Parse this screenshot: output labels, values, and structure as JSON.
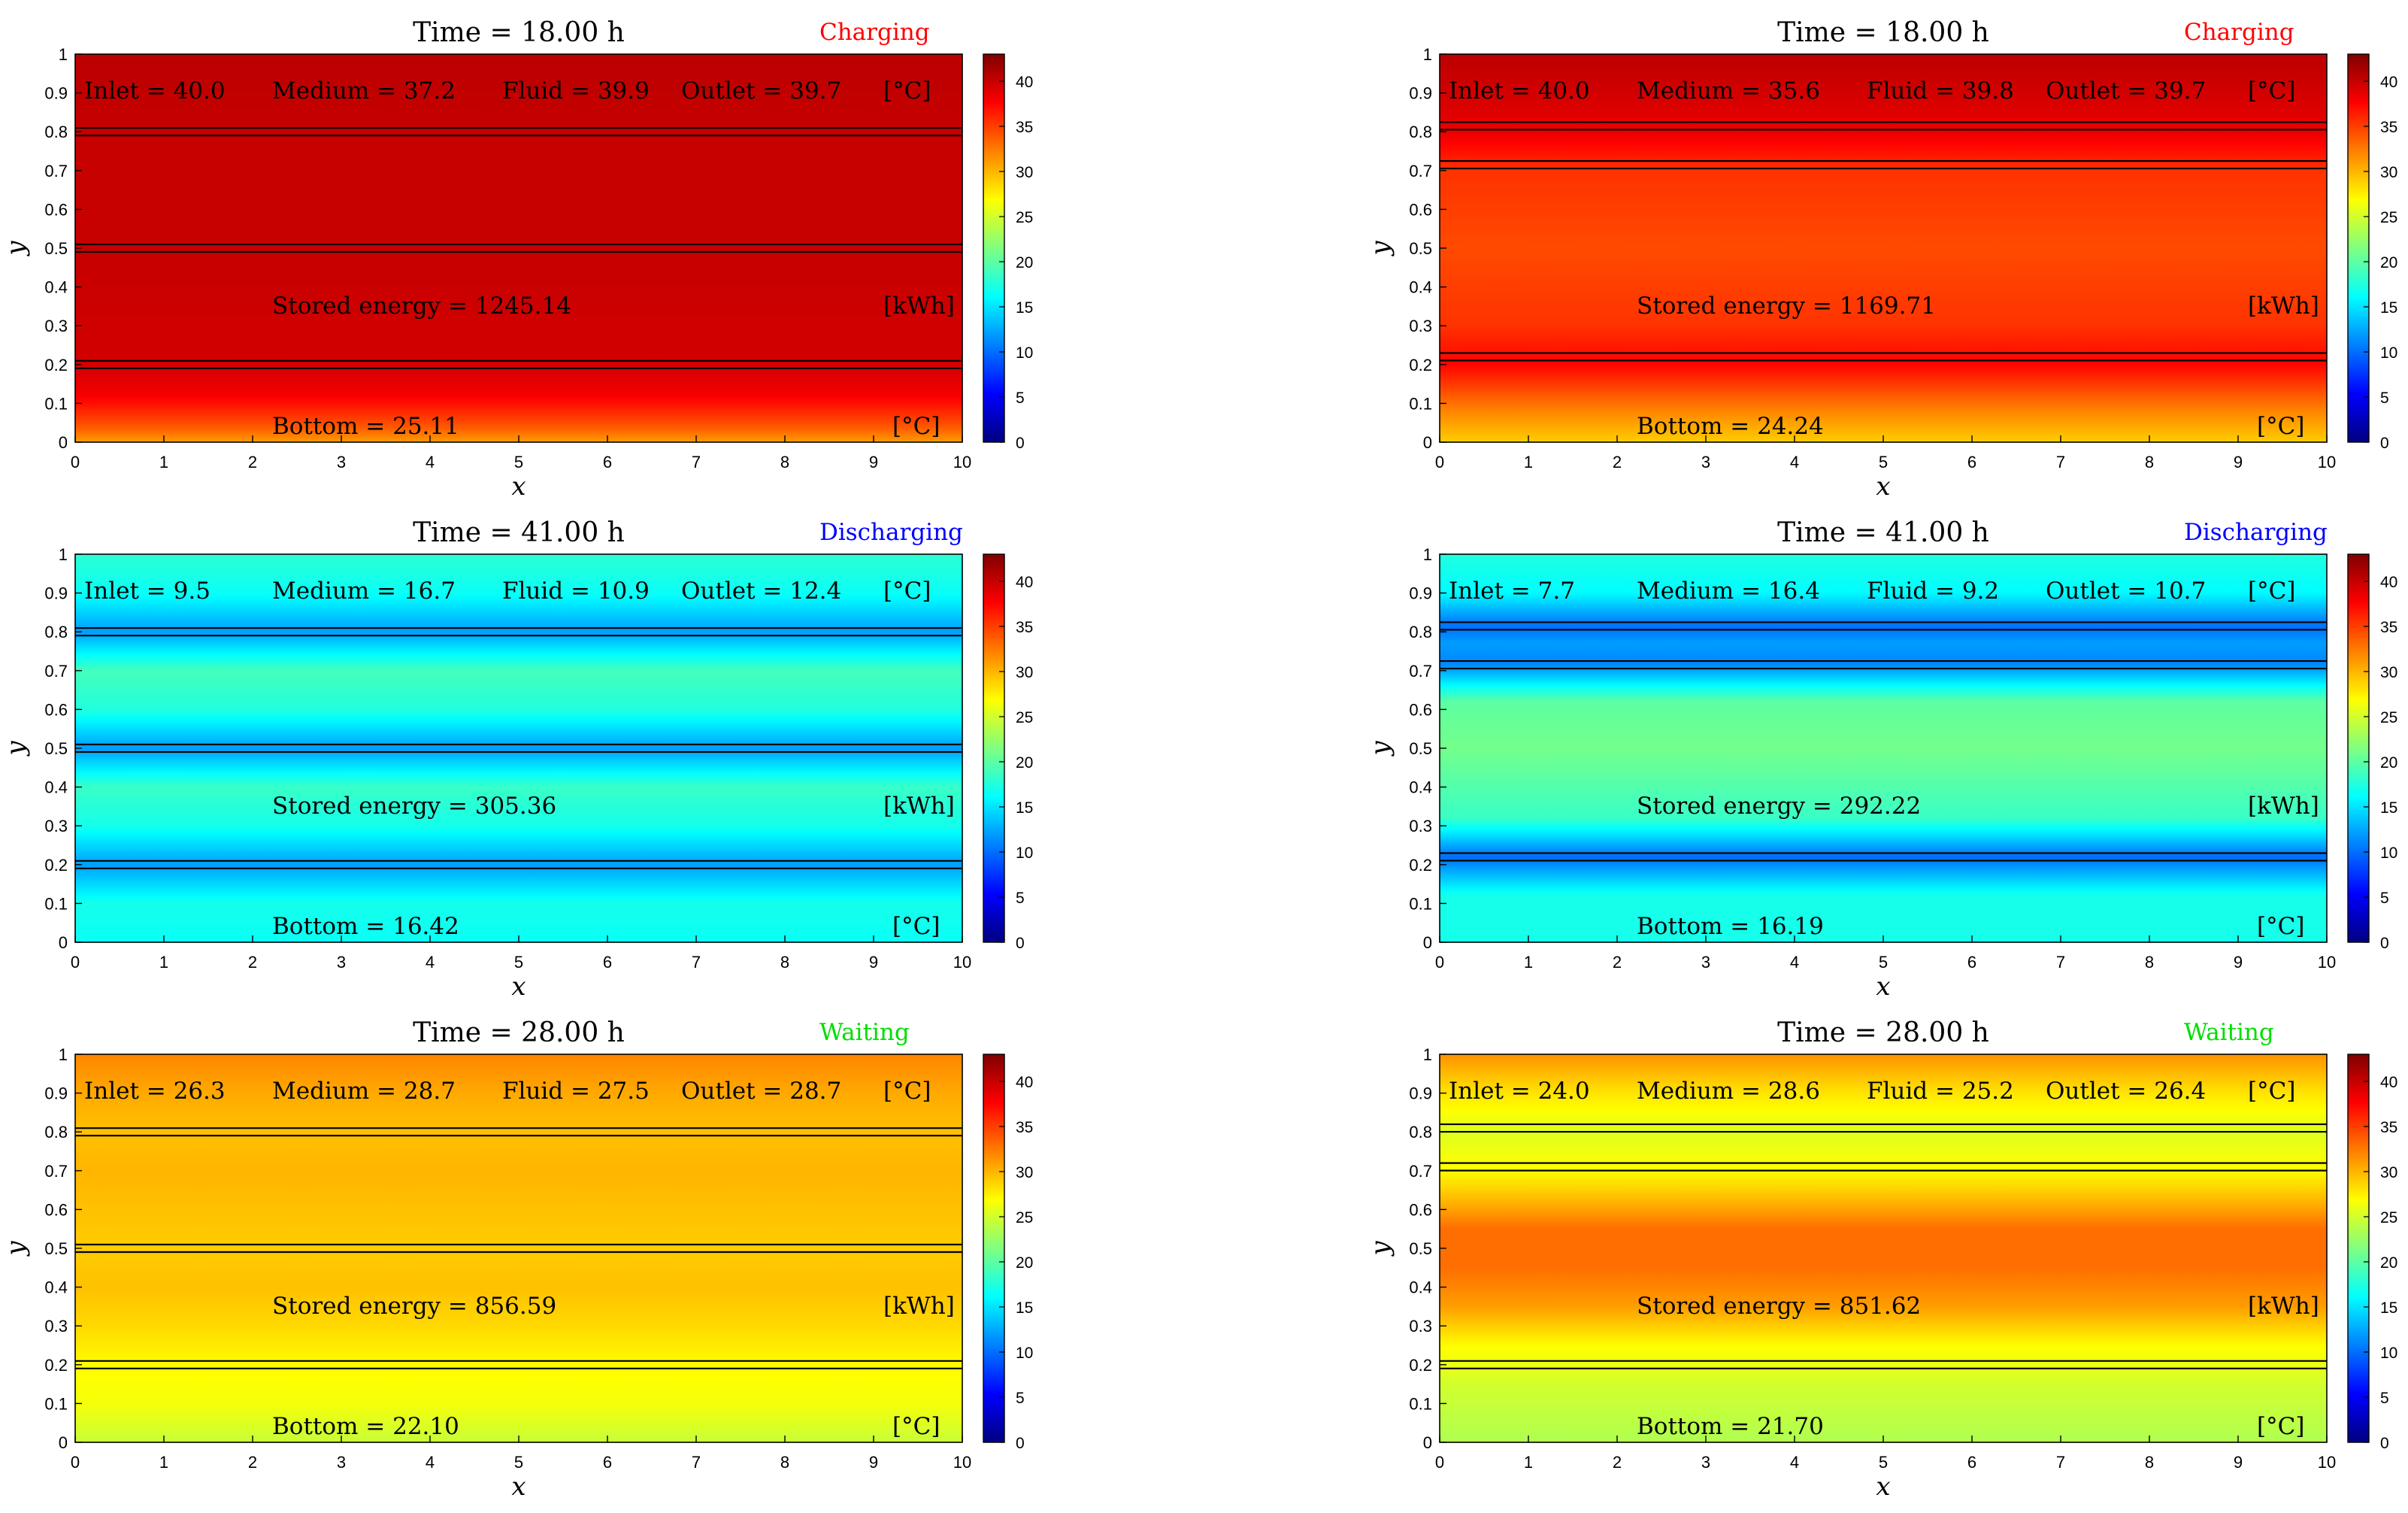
{
  "chart_data": [
    {
      "type": "heatmap",
      "title": "Time = 18.00 h",
      "state": "Charging",
      "state_color": "#ff0000",
      "xlabel": "x",
      "ylabel": "y",
      "xlim": [
        0,
        10
      ],
      "ylim": [
        0,
        1
      ],
      "xticks": [
        "0",
        "1",
        "2",
        "3",
        "4",
        "5",
        "6",
        "7",
        "8",
        "9",
        "10"
      ],
      "yticks": [
        "0",
        "0.1",
        "0.2",
        "0.3",
        "0.4",
        "0.5",
        "0.6",
        "0.7",
        "0.8",
        "0.9",
        "1"
      ],
      "clim": [
        0,
        43
      ],
      "colorbar_ticks": [
        "0",
        "5",
        "10",
        "15",
        "20",
        "25",
        "30",
        "35",
        "40"
      ],
      "colormap": "jet",
      "labels": {
        "inlet": "Inlet = 40.0",
        "medium": "Medium = 37.2",
        "fluid": "Fluid = 39.9",
        "outlet": "Outlet = 39.7",
        "temp_unit": "[°C]",
        "energy": "Stored energy = 1245.14",
        "energy_unit": "[kWh]",
        "bottom": "Bottom = 25.11",
        "bottom_unit": "[°C]"
      },
      "profile": [
        [
          0,
          31
        ],
        [
          0.04,
          34
        ],
        [
          0.12,
          38
        ],
        [
          0.2,
          39.5
        ],
        [
          0.5,
          40
        ],
        [
          0.8,
          40
        ],
        [
          1,
          40.5
        ]
      ],
      "pipes": [
        0.2,
        0.5,
        0.8
      ]
    },
    {
      "type": "heatmap",
      "title": "Time = 18.00 h",
      "state": "Charging",
      "state_color": "#ff0000",
      "xlabel": "x",
      "ylabel": "y",
      "xlim": [
        0,
        10
      ],
      "ylim": [
        0,
        1
      ],
      "xticks": [
        "0",
        "1",
        "2",
        "3",
        "4",
        "5",
        "6",
        "7",
        "8",
        "9",
        "10"
      ],
      "yticks": [
        "0",
        "0.1",
        "0.2",
        "0.3",
        "0.4",
        "0.5",
        "0.6",
        "0.7",
        "0.8",
        "0.9",
        "1"
      ],
      "clim": [
        0,
        43
      ],
      "colorbar_ticks": [
        "0",
        "5",
        "10",
        "15",
        "20",
        "25",
        "30",
        "35",
        "40"
      ],
      "colormap": "jet",
      "labels": {
        "inlet": "Inlet = 40.0",
        "medium": "Medium = 35.6",
        "fluid": "Fluid = 39.8",
        "outlet": "Outlet = 39.7",
        "temp_unit": "[°C]",
        "energy": "Stored energy = 1169.71",
        "energy_unit": "[kWh]",
        "bottom": "Bottom = 24.24",
        "bottom_unit": "[°C]"
      },
      "profile": [
        [
          0,
          29
        ],
        [
          0.08,
          32
        ],
        [
          0.2,
          37.5
        ],
        [
          0.3,
          35.5
        ],
        [
          0.5,
          34.5
        ],
        [
          0.7,
          35.5
        ],
        [
          0.8,
          38.5
        ],
        [
          1,
          40.5
        ]
      ],
      "pipes": [
        0.22,
        0.715,
        0.815
      ]
    },
    {
      "type": "heatmap",
      "title": "Time = 41.00 h",
      "state": "Discharging",
      "state_color": "#0000ff",
      "xlabel": "x",
      "ylabel": "y",
      "xlim": [
        0,
        10
      ],
      "ylim": [
        0,
        1
      ],
      "xticks": [
        "0",
        "1",
        "2",
        "3",
        "4",
        "5",
        "6",
        "7",
        "8",
        "9",
        "10"
      ],
      "yticks": [
        "0",
        "0.1",
        "0.2",
        "0.3",
        "0.4",
        "0.5",
        "0.6",
        "0.7",
        "0.8",
        "0.9",
        "1"
      ],
      "clim": [
        0,
        43
      ],
      "colorbar_ticks": [
        "0",
        "5",
        "10",
        "15",
        "20",
        "25",
        "30",
        "35",
        "40"
      ],
      "colormap": "jet",
      "labels": {
        "inlet": "Inlet = 9.5",
        "medium": "Medium = 16.7",
        "fluid": "Fluid = 10.9",
        "outlet": "Outlet = 12.4",
        "temp_unit": "[°C]",
        "energy": "Stored energy = 305.36",
        "energy_unit": "[kWh]",
        "bottom": "Bottom = 16.42",
        "bottom_unit": "[°C]"
      },
      "profile": [
        [
          0,
          16.5
        ],
        [
          0.1,
          17
        ],
        [
          0.2,
          12
        ],
        [
          0.3,
          17
        ],
        [
          0.4,
          18.5
        ],
        [
          0.5,
          12
        ],
        [
          0.6,
          17.5
        ],
        [
          0.7,
          19
        ],
        [
          0.8,
          12
        ],
        [
          0.9,
          16.5
        ],
        [
          1,
          18
        ]
      ],
      "pipes": [
        0.2,
        0.5,
        0.8
      ]
    },
    {
      "type": "heatmap",
      "title": "Time = 41.00 h",
      "state": "Discharging",
      "state_color": "#0000ff",
      "xlabel": "x",
      "ylabel": "y",
      "xlim": [
        0,
        10
      ],
      "ylim": [
        0,
        1
      ],
      "xticks": [
        "0",
        "1",
        "2",
        "3",
        "4",
        "5",
        "6",
        "7",
        "8",
        "9",
        "10"
      ],
      "yticks": [
        "0",
        "0.1",
        "0.2",
        "0.3",
        "0.4",
        "0.5",
        "0.6",
        "0.7",
        "0.8",
        "0.9",
        "1"
      ],
      "clim": [
        0,
        43
      ],
      "colorbar_ticks": [
        "0",
        "5",
        "10",
        "15",
        "20",
        "25",
        "30",
        "35",
        "40"
      ],
      "colormap": "jet",
      "labels": {
        "inlet": "Inlet = 7.7",
        "medium": "Medium = 16.4",
        "fluid": "Fluid = 9.2",
        "outlet": "Outlet = 10.7",
        "temp_unit": "[°C]",
        "energy": "Stored energy = 292.22",
        "energy_unit": "[kWh]",
        "bottom": "Bottom = 16.19",
        "bottom_unit": "[°C]"
      },
      "profile": [
        [
          0,
          17
        ],
        [
          0.12,
          17
        ],
        [
          0.22,
          10
        ],
        [
          0.32,
          18.5
        ],
        [
          0.5,
          21
        ],
        [
          0.62,
          20
        ],
        [
          0.715,
          11
        ],
        [
          0.77,
          12
        ],
        [
          0.815,
          10
        ],
        [
          0.9,
          16
        ],
        [
          1,
          17.5
        ]
      ],
      "pipes": [
        0.22,
        0.715,
        0.815
      ]
    },
    {
      "type": "heatmap",
      "title": "Time = 28.00 h",
      "state": "Waiting",
      "state_color": "#00dd00",
      "xlabel": "x",
      "ylabel": "y",
      "xlim": [
        0,
        10
      ],
      "ylim": [
        0,
        1
      ],
      "xticks": [
        "0",
        "1",
        "2",
        "3",
        "4",
        "5",
        "6",
        "7",
        "8",
        "9",
        "10"
      ],
      "yticks": [
        "0",
        "0.1",
        "0.2",
        "0.3",
        "0.4",
        "0.5",
        "0.6",
        "0.7",
        "0.8",
        "0.9",
        "1"
      ],
      "clim": [
        0,
        43
      ],
      "colorbar_ticks": [
        "0",
        "5",
        "10",
        "15",
        "20",
        "25",
        "30",
        "35",
        "40"
      ],
      "colormap": "jet",
      "labels": {
        "inlet": "Inlet = 26.3",
        "medium": "Medium = 28.7",
        "fluid": "Fluid = 27.5",
        "outlet": "Outlet = 28.7",
        "temp_unit": "[°C]",
        "energy": "Stored energy = 856.59",
        "energy_unit": "[kWh]",
        "bottom": "Bottom = 22.10",
        "bottom_unit": "[°C]"
      },
      "profile": [
        [
          0,
          24.5
        ],
        [
          0.1,
          26.5
        ],
        [
          0.2,
          27
        ],
        [
          0.3,
          28.5
        ],
        [
          0.4,
          29.5
        ],
        [
          0.5,
          29
        ],
        [
          0.6,
          29.5
        ],
        [
          0.7,
          30
        ],
        [
          0.8,
          29.5
        ],
        [
          0.9,
          30.5
        ],
        [
          1,
          32
        ]
      ],
      "pipes": [
        0.2,
        0.5,
        0.8
      ]
    },
    {
      "type": "heatmap",
      "title": "Time = 28.00 h",
      "state": "Waiting",
      "state_color": "#00dd00",
      "xlabel": "x",
      "ylabel": "y",
      "xlim": [
        0,
        10
      ],
      "ylim": [
        0,
        1
      ],
      "xticks": [
        "0",
        "1",
        "2",
        "3",
        "4",
        "5",
        "6",
        "7",
        "8",
        "9",
        "10"
      ],
      "yticks": [
        "0",
        "0.1",
        "0.2",
        "0.3",
        "0.4",
        "0.5",
        "0.6",
        "0.7",
        "0.8",
        "0.9",
        "1"
      ],
      "clim": [
        0,
        43
      ],
      "colorbar_ticks": [
        "0",
        "5",
        "10",
        "15",
        "20",
        "25",
        "30",
        "35",
        "40"
      ],
      "colormap": "jet",
      "labels": {
        "inlet": "Inlet = 24.0",
        "medium": "Medium = 28.6",
        "fluid": "Fluid = 25.2",
        "outlet": "Outlet = 26.4",
        "temp_unit": "[°C]",
        "energy": "Stored energy = 851.62",
        "energy_unit": "[kWh]",
        "bottom": "Bottom = 21.70",
        "bottom_unit": "[°C]"
      },
      "profile": [
        [
          0,
          23.5
        ],
        [
          0.15,
          25
        ],
        [
          0.25,
          27
        ],
        [
          0.35,
          31
        ],
        [
          0.45,
          33
        ],
        [
          0.55,
          33
        ],
        [
          0.62,
          30
        ],
        [
          0.7,
          27
        ],
        [
          0.8,
          25.5
        ],
        [
          0.9,
          28
        ],
        [
          1,
          31.5
        ]
      ],
      "pipes": [
        0.2,
        0.71,
        0.81
      ]
    }
  ]
}
